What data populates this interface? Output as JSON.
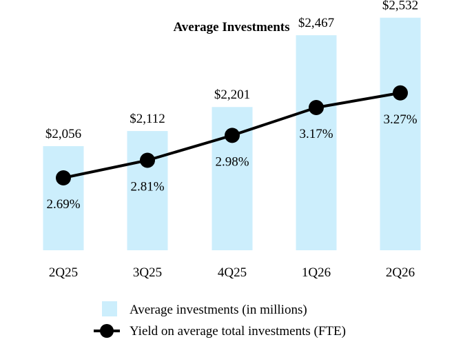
{
  "chart_data": {
    "type": "bar",
    "title": "Average Investments",
    "categories": [
      "2Q25",
      "3Q25",
      "4Q25",
      "1Q26",
      "2Q26"
    ],
    "series": [
      {
        "name": "Average investments (in millions)",
        "type": "bar",
        "values": [
          2056,
          2112,
          2201,
          2467,
          2532
        ],
        "labels": [
          "$2,056",
          "$2,112",
          "$2,201",
          "$2,467",
          "$2,532"
        ],
        "color": "#cceefc"
      },
      {
        "name": "Yield on average total investments (FTE)",
        "type": "line",
        "values": [
          2.69,
          2.81,
          2.98,
          3.17,
          3.27
        ],
        "labels": [
          "2.69%",
          "2.81%",
          "2.98%",
          "3.17%",
          "3.27%"
        ],
        "color": "#000000"
      }
    ],
    "legend_position": "bottom-center",
    "grid": false
  }
}
